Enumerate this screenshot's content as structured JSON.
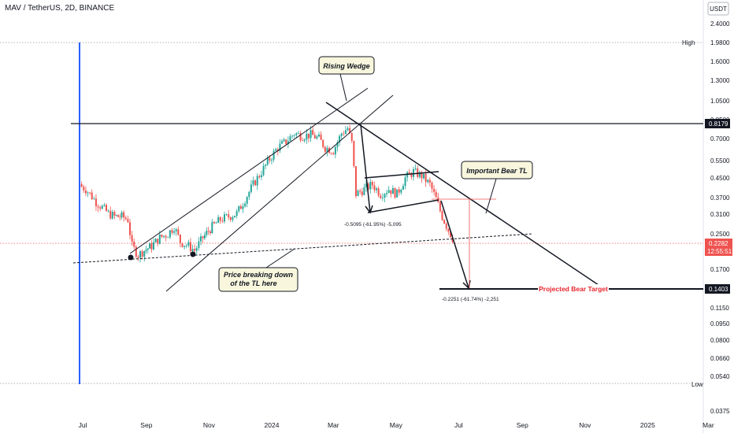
{
  "header": {
    "symbol_title": "MAV / TetherUS, 2D, BINANCE"
  },
  "price_axis": {
    "currency": "USDT",
    "ticks": [
      "2.4000",
      "1.9800",
      "1.6000",
      "1.3000",
      "1.0500",
      "0.8500",
      "0.7000",
      "0.5500",
      "0.4500",
      "0.3700",
      "0.3100",
      "0.2500",
      "0.1700",
      "0.1150",
      "0.0950",
      "0.0800",
      "0.0660",
      "0.0540",
      "0.0375"
    ],
    "high_label": "High",
    "high_value": "1.9800",
    "low_label": "Low",
    "low_value": "0.0500",
    "level_tag": "0.8179",
    "target_tag": "0.1403",
    "last_price": "0.2282",
    "countdown": "12:55:51"
  },
  "time_axis": {
    "labels": [
      "Jul",
      "Sep",
      "Nov",
      "2024",
      "Mar",
      "May",
      "Jul",
      "Sep",
      "Nov",
      "2025",
      "Mar"
    ]
  },
  "annotations": {
    "rising_wedge": "Rising Wedge",
    "important_bear_tl": "Important Bear TL",
    "price_breaking_line1": "Price breaking down",
    "price_breaking_line2": "of the TL here",
    "projected_target": "Projected Bear Target",
    "measure_1": "-0.5095 (-61.95%) -5,095",
    "measure_2": "-0.2251 (-61.74%) -2,251"
  },
  "colors": {
    "up": "#26a69a",
    "down": "#ef5350",
    "target_text": "#e8252e",
    "level_tag_bg": "#131722",
    "last_price_bg": "#ef5350",
    "vertical_line": "#2962ff"
  },
  "chart_data": {
    "type": "candlestick",
    "interval": "2D",
    "y_scale": "log",
    "ylim": [
      0.034,
      2.8
    ],
    "x_ticks": [
      {
        "label": "Jul",
        "date": "2023-07-01"
      },
      {
        "label": "Sep",
        "date": "2023-09-01"
      },
      {
        "label": "Nov",
        "date": "2023-11-01"
      },
      {
        "label": "2024",
        "date": "2024-01-01"
      },
      {
        "label": "Mar",
        "date": "2024-03-01"
      },
      {
        "label": "May",
        "date": "2024-05-01"
      },
      {
        "label": "Jul",
        "date": "2024-07-01"
      },
      {
        "label": "Sep",
        "date": "2024-09-01"
      },
      {
        "label": "Nov",
        "date": "2024-11-01"
      },
      {
        "label": "2025",
        "date": "2025-01-01"
      },
      {
        "label": "Mar",
        "date": "2025-03-01"
      }
    ],
    "close_series": [
      [
        "2023-06-30",
        0.41
      ],
      [
        "2023-07-04",
        0.4
      ],
      [
        "2023-07-08",
        0.38
      ],
      [
        "2023-07-14",
        0.35
      ],
      [
        "2023-07-20",
        0.33
      ],
      [
        "2023-07-26",
        0.31
      ],
      [
        "2023-08-01",
        0.3
      ],
      [
        "2023-08-08",
        0.3
      ],
      [
        "2023-08-14",
        0.29
      ],
      [
        "2023-08-18",
        0.22
      ],
      [
        "2023-08-24",
        0.2
      ],
      [
        "2023-08-30",
        0.21
      ],
      [
        "2023-09-06",
        0.22
      ],
      [
        "2023-09-14",
        0.24
      ],
      [
        "2023-09-22",
        0.25
      ],
      [
        "2023-09-28",
        0.27
      ],
      [
        "2023-10-04",
        0.23
      ],
      [
        "2023-10-12",
        0.22
      ],
      [
        "2023-10-18",
        0.21
      ],
      [
        "2023-10-26",
        0.24
      ],
      [
        "2023-11-04",
        0.27
      ],
      [
        "2023-11-12",
        0.29
      ],
      [
        "2023-11-20",
        0.3
      ],
      [
        "2023-11-28",
        0.31
      ],
      [
        "2023-12-06",
        0.36
      ],
      [
        "2023-12-14",
        0.42
      ],
      [
        "2023-12-22",
        0.48
      ],
      [
        "2023-12-30",
        0.55
      ],
      [
        "2024-01-07",
        0.62
      ],
      [
        "2024-01-15",
        0.66
      ],
      [
        "2024-01-23",
        0.72
      ],
      [
        "2024-01-31",
        0.7
      ],
      [
        "2024-02-08",
        0.71
      ],
      [
        "2024-02-16",
        0.68
      ],
      [
        "2024-02-22",
        0.62
      ],
      [
        "2024-03-01",
        0.6
      ],
      [
        "2024-03-09",
        0.72
      ],
      [
        "2024-03-15",
        0.76
      ],
      [
        "2024-03-19",
        0.65
      ],
      [
        "2024-03-23",
        0.38
      ],
      [
        "2024-03-31",
        0.4
      ],
      [
        "2024-04-08",
        0.42
      ],
      [
        "2024-04-16",
        0.38
      ],
      [
        "2024-04-24",
        0.4
      ],
      [
        "2024-05-02",
        0.38
      ],
      [
        "2024-05-10",
        0.45
      ],
      [
        "2024-05-18",
        0.48
      ],
      [
        "2024-05-26",
        0.46
      ],
      [
        "2024-06-03",
        0.42
      ],
      [
        "2024-06-09",
        0.36
      ],
      [
        "2024-06-15",
        0.3
      ],
      [
        "2024-06-21",
        0.26
      ],
      [
        "2024-06-27",
        0.23
      ]
    ],
    "horizontal_levels": [
      0.8179,
      0.1403
    ],
    "measurements": [
      {
        "label": "-0.5095 (-61.95%) -5,095",
        "change": -0.5095,
        "percent": -61.95
      },
      {
        "label": "-0.2251 (-61.74%) -2,251",
        "change": -0.2251,
        "percent": -61.74
      }
    ],
    "last_price": 0.2282,
    "high": 1.98,
    "low": 0.05
  }
}
